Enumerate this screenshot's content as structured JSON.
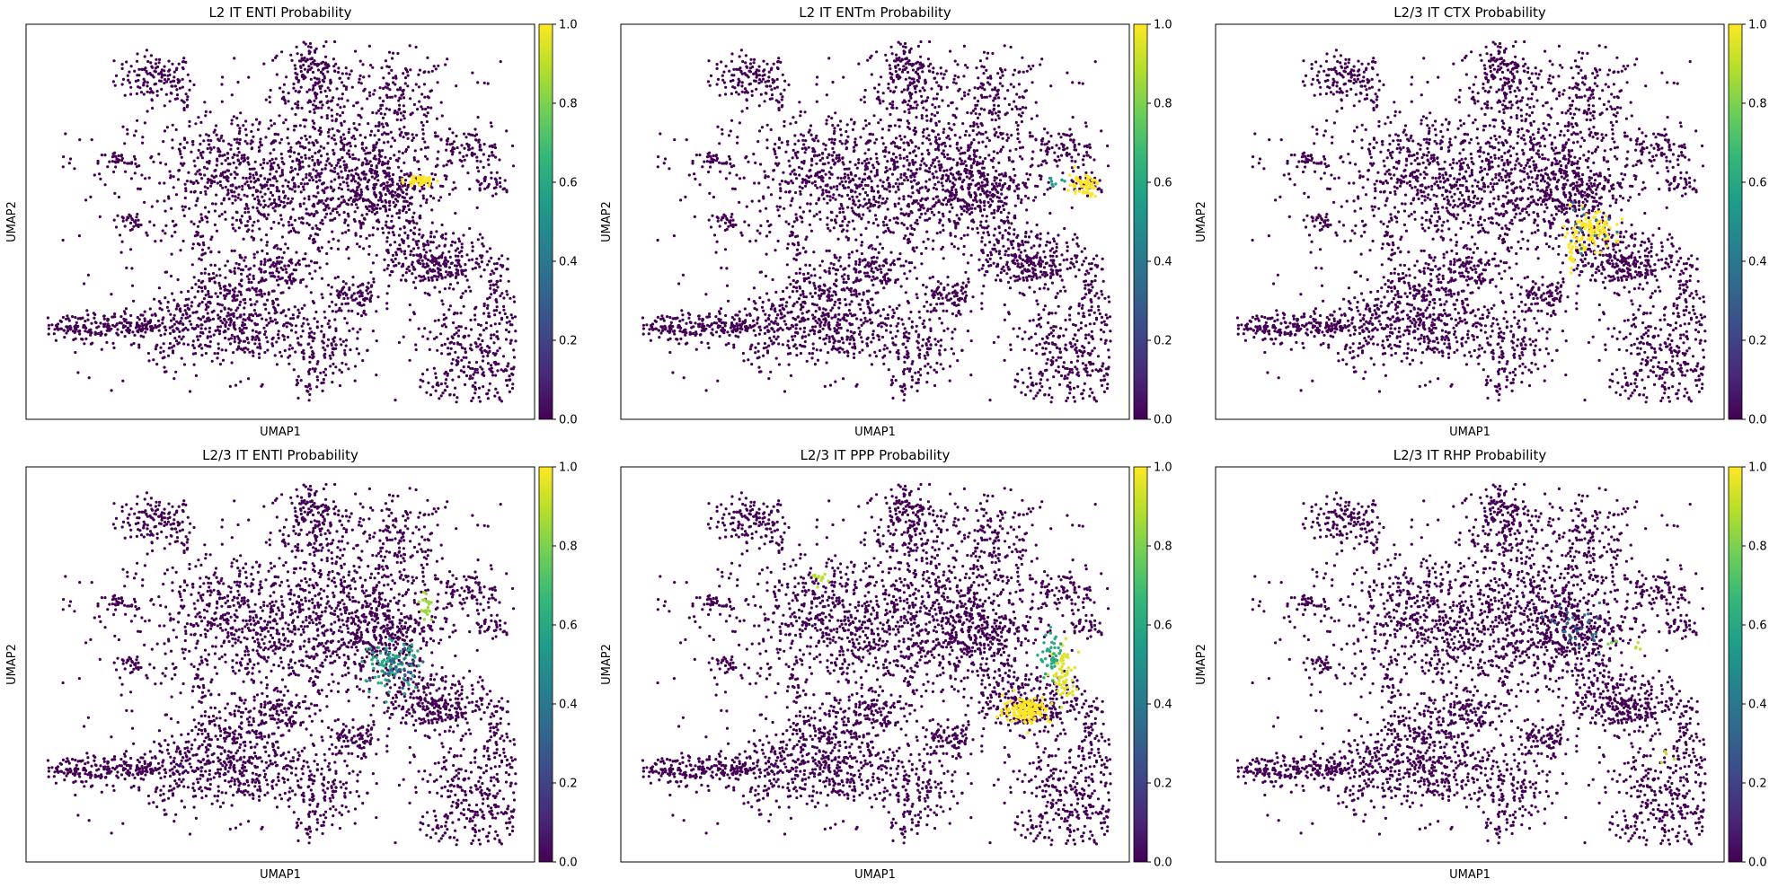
{
  "figure": {
    "colorscale": [
      "#440154",
      "#482878",
      "#3e4989",
      "#31688e",
      "#26828e",
      "#1f9e89",
      "#35b779",
      "#6ece58",
      "#b5de2b",
      "#fde725"
    ],
    "point_color_zero": "#440154",
    "point_color_one": "#fde725"
  },
  "chart_data": [
    {
      "type": "scatter",
      "title": "L2 IT ENTl Probability",
      "xlabel": "UMAP1",
      "ylabel": "UMAP2",
      "colorbar": {
        "range": [
          0,
          1
        ],
        "ticks": [
          "0.0",
          "0.2",
          "0.4",
          "0.6",
          "0.8",
          "1.0"
        ]
      },
      "grid": false,
      "x_ticks_shown": false,
      "y_ticks_shown": false,
      "highlight": [
        {
          "x": 0.785,
          "y": 0.61,
          "rx": 0.025,
          "ry": 0.013,
          "value": 1.0,
          "n": 45
        }
      ]
    },
    {
      "type": "scatter",
      "title": "L2 IT ENTm Probability",
      "xlabel": "UMAP1",
      "ylabel": "UMAP2",
      "colorbar": {
        "range": [
          0,
          1
        ],
        "ticks": [
          "0.0",
          "0.2",
          "0.4",
          "0.6",
          "0.8",
          "1.0"
        ]
      },
      "grid": false,
      "x_ticks_shown": false,
      "y_ticks_shown": false,
      "highlight": [
        {
          "x": 0.925,
          "y": 0.6,
          "rx": 0.025,
          "ry": 0.025,
          "value": 1.0,
          "n": 60
        },
        {
          "x": 0.86,
          "y": 0.605,
          "rx": 0.02,
          "ry": 0.012,
          "value": 0.55,
          "n": 8
        }
      ]
    },
    {
      "type": "scatter",
      "title": "L2/3 IT CTX Probability",
      "xlabel": "UMAP1",
      "ylabel": "UMAP2",
      "colorbar": {
        "range": [
          0,
          1
        ],
        "ticks": [
          "0.0",
          "0.2",
          "0.4",
          "0.6",
          "0.8",
          "1.0"
        ]
      },
      "grid": false,
      "x_ticks_shown": false,
      "y_ticks_shown": false,
      "highlight": [
        {
          "x": 0.745,
          "y": 0.475,
          "rx": 0.045,
          "ry": 0.04,
          "value": 1.0,
          "n": 110
        },
        {
          "x": 0.705,
          "y": 0.405,
          "rx": 0.006,
          "ry": 0.035,
          "value": 1.0,
          "n": 18
        },
        {
          "x": 0.74,
          "y": 0.48,
          "rx": 0.05,
          "ry": 0.045,
          "value": 0.4,
          "n": 15
        }
      ]
    },
    {
      "type": "scatter",
      "title": "L2/3 IT ENTl Probability",
      "xlabel": "UMAP1",
      "ylabel": "UMAP2",
      "colorbar": {
        "range": [
          0,
          1
        ],
        "ticks": [
          "0.0",
          "0.2",
          "0.4",
          "0.6",
          "0.8",
          "1.0"
        ]
      },
      "grid": false,
      "x_ticks_shown": false,
      "y_ticks_shown": false,
      "highlight": [
        {
          "x": 0.725,
          "y": 0.5,
          "rx": 0.045,
          "ry": 0.05,
          "value": 0.6,
          "n": 90
        },
        {
          "x": 0.8,
          "y": 0.65,
          "rx": 0.012,
          "ry": 0.035,
          "value": 0.85,
          "n": 20
        },
        {
          "x": 0.74,
          "y": 0.5,
          "rx": 0.04,
          "ry": 0.04,
          "value": 0.3,
          "n": 30
        }
      ]
    },
    {
      "type": "scatter",
      "title": "L2/3 IT PPP Probability",
      "xlabel": "UMAP1",
      "ylabel": "UMAP2",
      "colorbar": {
        "range": [
          0,
          1
        ],
        "ticks": [
          "0.0",
          "0.2",
          "0.4",
          "0.6",
          "0.8",
          "1.0"
        ]
      },
      "grid": false,
      "x_ticks_shown": false,
      "y_ticks_shown": false,
      "highlight": [
        {
          "x": 0.81,
          "y": 0.38,
          "rx": 0.04,
          "ry": 0.03,
          "value": 1.0,
          "n": 150
        },
        {
          "x": 0.885,
          "y": 0.47,
          "rx": 0.02,
          "ry": 0.06,
          "value": 0.95,
          "n": 70
        },
        {
          "x": 0.86,
          "y": 0.52,
          "rx": 0.02,
          "ry": 0.05,
          "value": 0.6,
          "n": 45
        },
        {
          "x": 0.39,
          "y": 0.73,
          "rx": 0.015,
          "ry": 0.015,
          "value": 0.9,
          "n": 12
        }
      ]
    },
    {
      "type": "scatter",
      "title": "L2/3 IT RHP Probability",
      "xlabel": "UMAP1",
      "ylabel": "UMAP2",
      "colorbar": {
        "range": [
          0,
          1
        ],
        "ticks": [
          "0.0",
          "0.2",
          "0.4",
          "0.6",
          "0.8",
          "1.0"
        ]
      },
      "grid": false,
      "x_ticks_shown": false,
      "y_ticks_shown": false,
      "highlight": [
        {
          "x": 0.72,
          "y": 0.6,
          "rx": 0.04,
          "ry": 0.05,
          "value": 0.35,
          "n": 30
        },
        {
          "x": 0.84,
          "y": 0.55,
          "rx": 0.01,
          "ry": 0.01,
          "value": 0.9,
          "n": 4
        },
        {
          "x": 0.9,
          "y": 0.25,
          "rx": 0.01,
          "ry": 0.02,
          "value": 0.9,
          "n": 4
        },
        {
          "x": 0.79,
          "y": 0.56,
          "rx": 0.012,
          "ry": 0.01,
          "value": 0.8,
          "n": 4
        }
      ]
    }
  ]
}
